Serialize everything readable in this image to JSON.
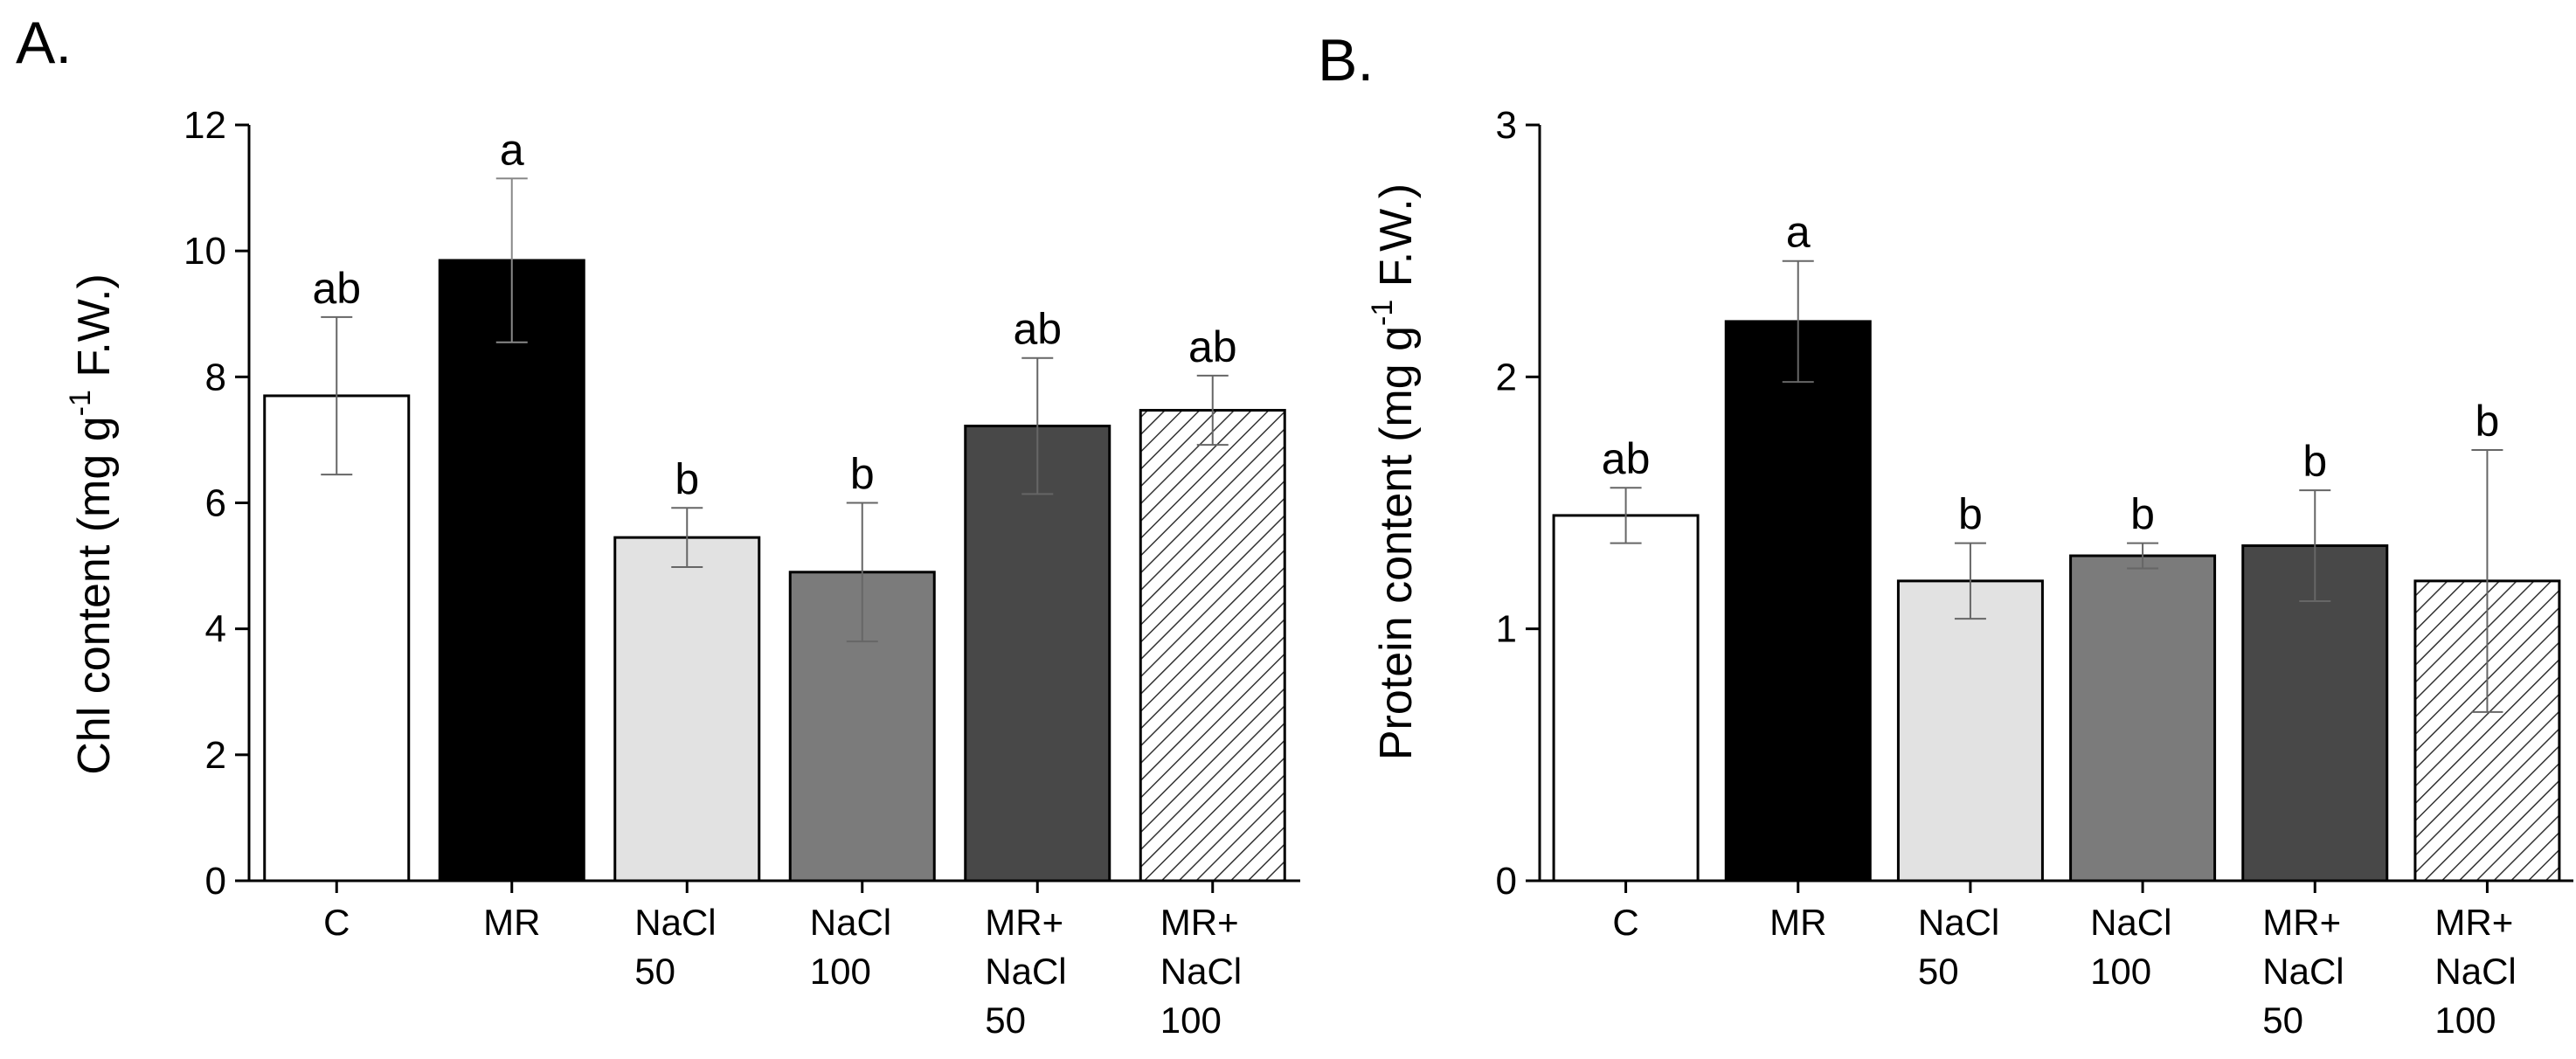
{
  "chart_data": [
    {
      "type": "bar",
      "panel_label": "A.",
      "categories": [
        [
          "C"
        ],
        [
          "MR"
        ],
        [
          "NaCl",
          "50"
        ],
        [
          "NaCl",
          "100"
        ],
        [
          "MR+",
          "NaCl",
          "50"
        ],
        [
          "MR+",
          "NaCl",
          "100"
        ]
      ],
      "values": [
        7.7,
        9.85,
        5.45,
        4.9,
        7.22,
        7.47
      ],
      "errors": [
        1.25,
        1.3,
        0.47,
        1.1,
        1.08,
        0.55
      ],
      "significance": [
        "ab",
        "a",
        "b",
        "b",
        "ab",
        "ab"
      ],
      "ylabel": {
        "main": "Chl content (mg g",
        "sup": "-1",
        "rest": " F.W.)"
      },
      "ylim": [
        0,
        12
      ],
      "yticks": [
        "0",
        "2",
        "4",
        "6",
        "8",
        "10",
        "12"
      ],
      "bar_fills": [
        "#ffffff",
        "#000000",
        "#e2e2e2",
        "#7b7b7b",
        "#484848",
        "hatch"
      ]
    },
    {
      "type": "bar",
      "panel_label": "B.",
      "categories": [
        [
          "C"
        ],
        [
          "MR"
        ],
        [
          "NaCl",
          "50"
        ],
        [
          "NaCl",
          "100"
        ],
        [
          "MR+",
          "NaCl",
          "50"
        ],
        [
          "MR+",
          "NaCl",
          "100"
        ]
      ],
      "values": [
        1.45,
        2.22,
        1.19,
        1.29,
        1.33,
        1.19
      ],
      "errors": [
        0.11,
        0.24,
        0.15,
        0.05,
        0.22,
        0.52
      ],
      "significance": [
        "ab",
        "a",
        "b",
        "b",
        "b",
        "b"
      ],
      "ylabel": {
        "main": "Protein content (mg g",
        "sup": "-1",
        "rest": " F.W.)"
      },
      "ylim": [
        0,
        3
      ],
      "yticks": [
        "0",
        "1",
        "2",
        "3"
      ],
      "bar_fills": [
        "#ffffff",
        "#000000",
        "#e2e2e2",
        "#7b7b7b",
        "#484848",
        "hatch"
      ]
    }
  ]
}
